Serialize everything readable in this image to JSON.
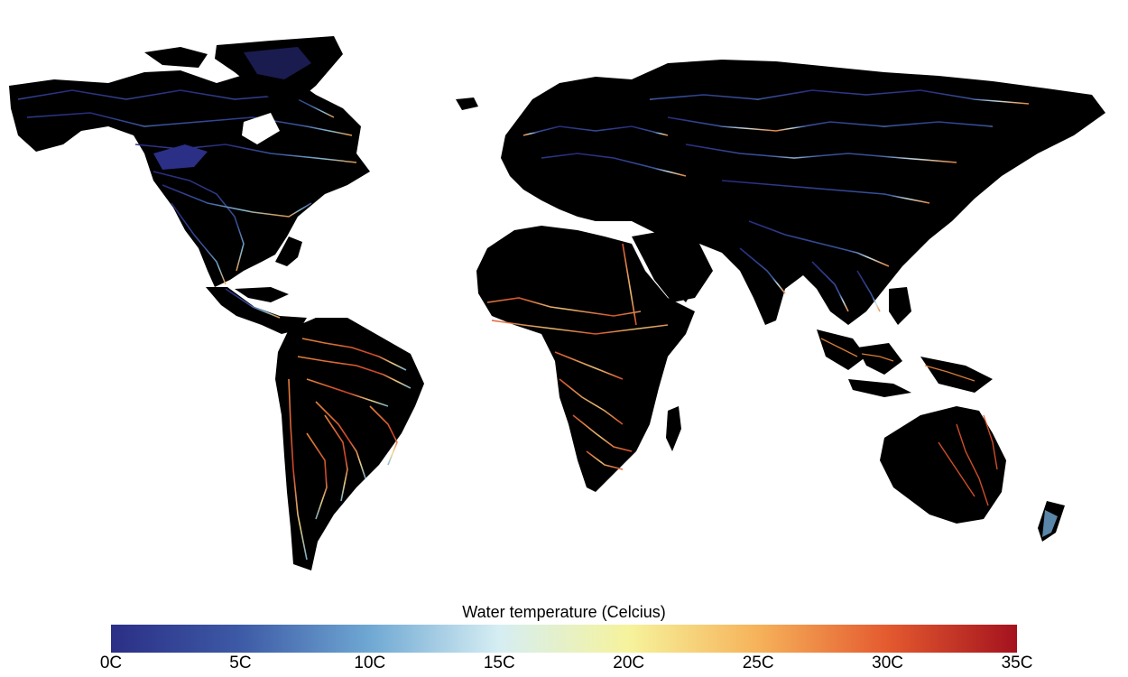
{
  "legend": {
    "title": "Water temperature (Celcius)",
    "min": 0,
    "max": 35,
    "ticks": [
      {
        "value": 0,
        "label": "0C"
      },
      {
        "value": 5,
        "label": "5C"
      },
      {
        "value": 10,
        "label": "10C"
      },
      {
        "value": 15,
        "label": "15C"
      },
      {
        "value": 20,
        "label": "20C"
      },
      {
        "value": 25,
        "label": "25C"
      },
      {
        "value": 30,
        "label": "30C"
      },
      {
        "value": 35,
        "label": "35C"
      }
    ],
    "colors": {
      "land": "#000000",
      "background": "#ffffff",
      "stops": [
        "#2b2f86",
        "#3d5aa6",
        "#6fa8d3",
        "#d6eef3",
        "#f6f39c",
        "#f6b25a",
        "#e45a2f",
        "#a4121e"
      ]
    }
  }
}
